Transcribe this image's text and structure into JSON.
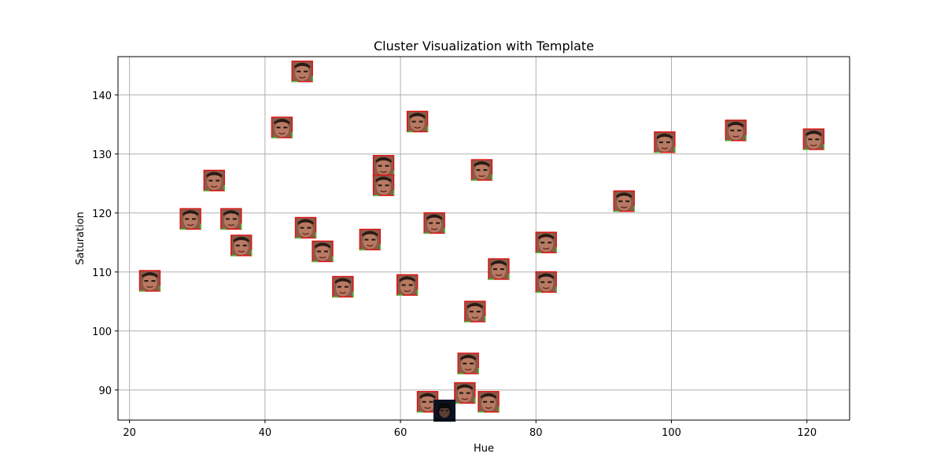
{
  "chart_data": {
    "type": "scatter",
    "title": "Cluster Visualization with Template",
    "xlabel": "Hue",
    "ylabel": "Saturation",
    "xlim": [
      18.3,
      126.3
    ],
    "ylim": [
      84.9,
      146.5
    ],
    "xticks": [
      20,
      40,
      60,
      80,
      100,
      120
    ],
    "yticks": [
      90,
      100,
      110,
      120,
      130,
      140
    ],
    "grid": true,
    "marker": "face-thumbnail",
    "points": [
      {
        "x": 23,
        "y": 108.5
      },
      {
        "x": 29,
        "y": 119
      },
      {
        "x": 32.5,
        "y": 125.5
      },
      {
        "x": 35,
        "y": 119
      },
      {
        "x": 36.5,
        "y": 114.5
      },
      {
        "x": 42.5,
        "y": 134.5
      },
      {
        "x": 45.5,
        "y": 144
      },
      {
        "x": 46,
        "y": 117.5
      },
      {
        "x": 48.5,
        "y": 113.5
      },
      {
        "x": 51.5,
        "y": 107.5
      },
      {
        "x": 55.5,
        "y": 115.5
      },
      {
        "x": 57.5,
        "y": 128
      },
      {
        "x": 57.5,
        "y": 124.7
      },
      {
        "x": 61,
        "y": 107.8
      },
      {
        "x": 62.5,
        "y": 135.5
      },
      {
        "x": 64,
        "y": 88
      },
      {
        "x": 65,
        "y": 118.3
      },
      {
        "x": 69.5,
        "y": 89.5
      },
      {
        "x": 70,
        "y": 94.5
      },
      {
        "x": 71,
        "y": 103.3
      },
      {
        "x": 72,
        "y": 127.3
      },
      {
        "x": 73,
        "y": 88
      },
      {
        "x": 74.5,
        "y": 110.5
      },
      {
        "x": 81.5,
        "y": 108.3
      },
      {
        "x": 81.5,
        "y": 115
      },
      {
        "x": 93,
        "y": 122
      },
      {
        "x": 99,
        "y": 132
      },
      {
        "x": 109.5,
        "y": 134
      },
      {
        "x": 121,
        "y": 132.5
      }
    ],
    "template": {
      "x": 66.5,
      "y": 86.5
    }
  }
}
